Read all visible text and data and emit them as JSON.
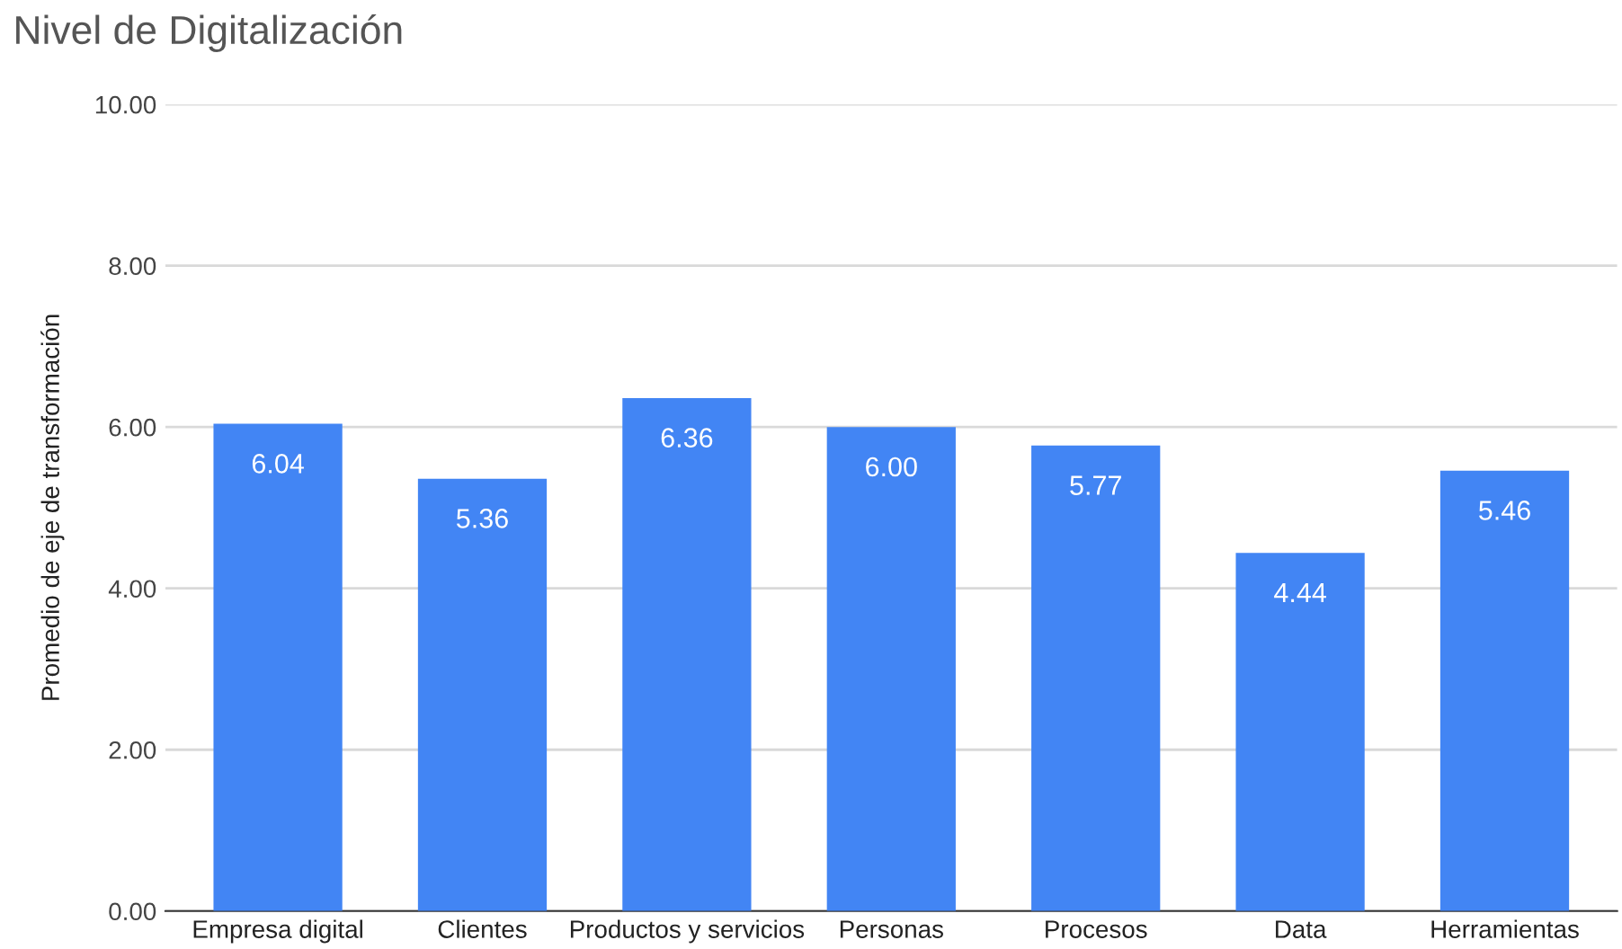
{
  "chart_data": {
    "type": "bar",
    "title": "Nivel de Digitalización",
    "ylabel": "Promedio de eje de transformación",
    "categories": [
      "Empresa digital",
      "Clientes",
      "Productos y servicios",
      "Personas",
      "Procesos",
      "Data",
      "Herramientas"
    ],
    "values": [
      6.04,
      5.36,
      6.36,
      6.0,
      5.77,
      4.44,
      5.46
    ],
    "value_labels": [
      "6.04",
      "5.36",
      "6.36",
      "6.00",
      "5.77",
      "4.44",
      "5.46"
    ],
    "color": "#4285f4",
    "ylim": [
      0,
      10
    ],
    "yticks": [
      {
        "value": 0,
        "label": "0.00"
      },
      {
        "value": 2,
        "label": "2.00"
      },
      {
        "value": 4,
        "label": "4.00"
      },
      {
        "value": 6,
        "label": "6.00"
      },
      {
        "value": 8,
        "label": "8.00"
      },
      {
        "value": 10,
        "label": "10.00"
      }
    ],
    "grid": "y",
    "legend": false
  }
}
